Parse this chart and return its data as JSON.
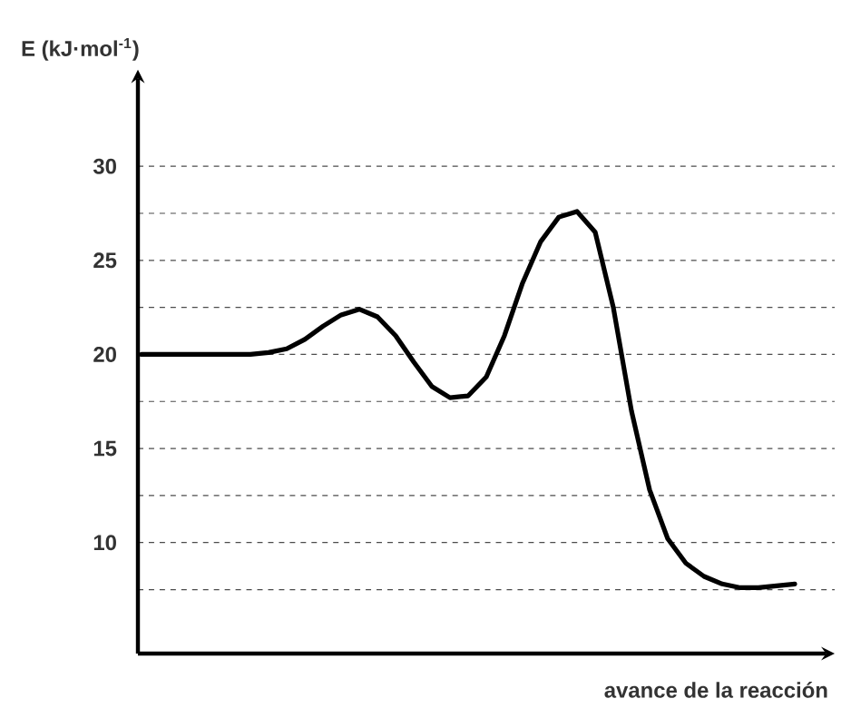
{
  "chart_data": {
    "type": "line",
    "ylabel": "E (kJ·mol$^{-1}$)",
    "xlabel": "avance de la reacción",
    "categories": [
      null,
      null,
      null,
      null,
      null,
      null,
      null,
      null,
      null,
      null,
      null,
      null,
      null,
      null,
      null,
      null,
      null,
      null,
      null,
      null,
      null,
      null,
      null,
      null,
      null,
      null,
      null,
      null,
      null,
      null,
      null,
      null,
      null,
      null,
      null,
      null,
      null
    ],
    "series": [
      {
        "color": "#000000",
        "values": [
          20.0,
          20.0,
          20.0,
          20.0,
          20.0,
          20.0,
          20.0,
          20.1,
          20.3,
          20.8,
          21.5,
          22.1,
          22.4,
          22.0,
          21.0,
          19.6,
          18.3,
          17.7,
          17.8,
          18.8,
          21.0,
          23.8,
          26.0,
          27.3,
          27.6,
          26.5,
          22.5,
          17.0,
          12.8,
          10.2,
          8.9,
          8.2,
          7.8,
          7.6,
          7.6,
          7.7,
          7.8
        ]
      }
    ],
    "ylim": [
      4.1,
      34.7
    ],
    "yticks": [
      {
        "value": 7.5,
        "label": null
      },
      10,
      {
        "value": 12.5,
        "label": null
      },
      15,
      {
        "value": 17.5,
        "label": null
      },
      20,
      {
        "value": 22.5,
        "label": null
      },
      25,
      {
        "value": 27.5,
        "label": null
      },
      30
    ],
    "grid": "y",
    "tick_labels": "y",
    "marker": "none",
    "line_style": "solid"
  }
}
